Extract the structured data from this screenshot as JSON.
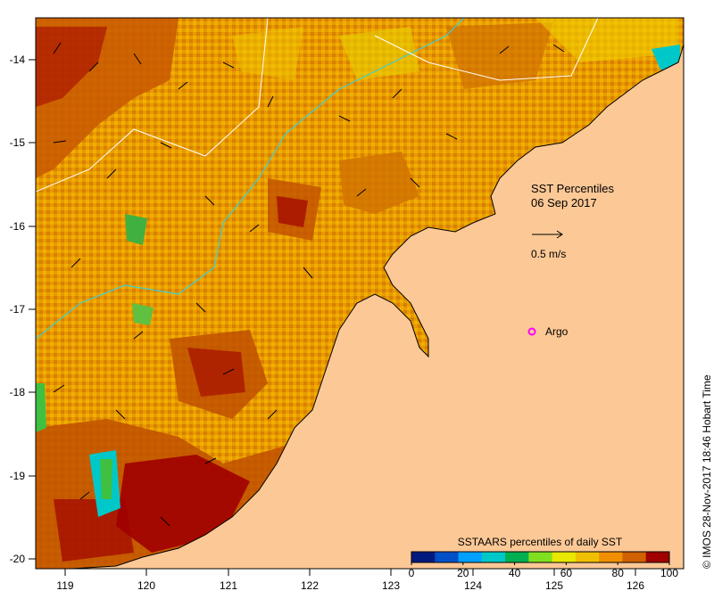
{
  "map": {
    "title_line1": "SST Percentiles",
    "title_line2": "06 Sep 2017",
    "current_scale_label": "0.5 m/s",
    "marker_label": "Argo",
    "credit": "© IMOS 28-Nov-2017 18:46 Hobart Time",
    "lon_ticks": [
      "119",
      "120",
      "121",
      "122",
      "123",
      "124",
      "125",
      "126"
    ],
    "lat_ticks": [
      "-14",
      "-15",
      "-16",
      "-17",
      "-18",
      "-19",
      "-20"
    ],
    "colorbar": {
      "title": "SSTAARS percentiles of daily SST",
      "tick_labels": [
        "0",
        "20",
        "40",
        "60",
        "80",
        "100"
      ],
      "colors": [
        "#001a80",
        "#0050c8",
        "#00a0ff",
        "#00c8c8",
        "#00b050",
        "#80e020",
        "#e8e800",
        "#f0c000",
        "#f09000",
        "#d06000",
        "#a00000"
      ]
    },
    "land_color": "#fcc896",
    "sea_palette": [
      "#f0a000",
      "#e8b000",
      "#d87000",
      "#c05000",
      "#a00000",
      "#f0d000",
      "#f8e800",
      "#c0e040",
      "#40c040"
    ]
  }
}
